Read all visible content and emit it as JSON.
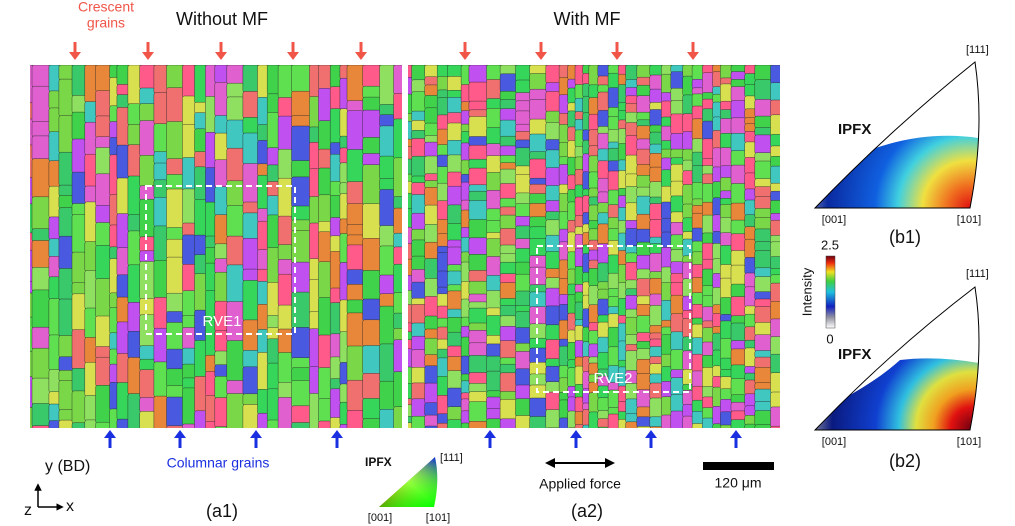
{
  "panels": [
    {
      "title": "Without MF",
      "label": "(a1)",
      "rve": "RVE1"
    },
    {
      "title": "With MF",
      "label": "(a2)",
      "rve": "RVE2"
    }
  ],
  "crescent_grains": [
    "Crescent",
    "grains"
  ],
  "columnar_grains": "Columnar grains",
  "applied_force": "Applied force",
  "scale_bar": "120 μm",
  "axes": {
    "y": "y (BD)",
    "x": "x",
    "z": "z"
  },
  "ipf_key": {
    "title": "IPFX",
    "top": "[111]",
    "left": "[001]",
    "right": "[101]"
  },
  "pole_figures": [
    {
      "title": "IPFX",
      "top": "[111]",
      "left": "[001]",
      "right": "[101]",
      "label": "(b1)"
    },
    {
      "title": "IPFX",
      "top": "[111]",
      "left": "[001]",
      "right": "[101]",
      "label": "(b2)"
    }
  ],
  "colorbar": {
    "label": "Intensity",
    "max": "2.5",
    "min": "0"
  }
}
